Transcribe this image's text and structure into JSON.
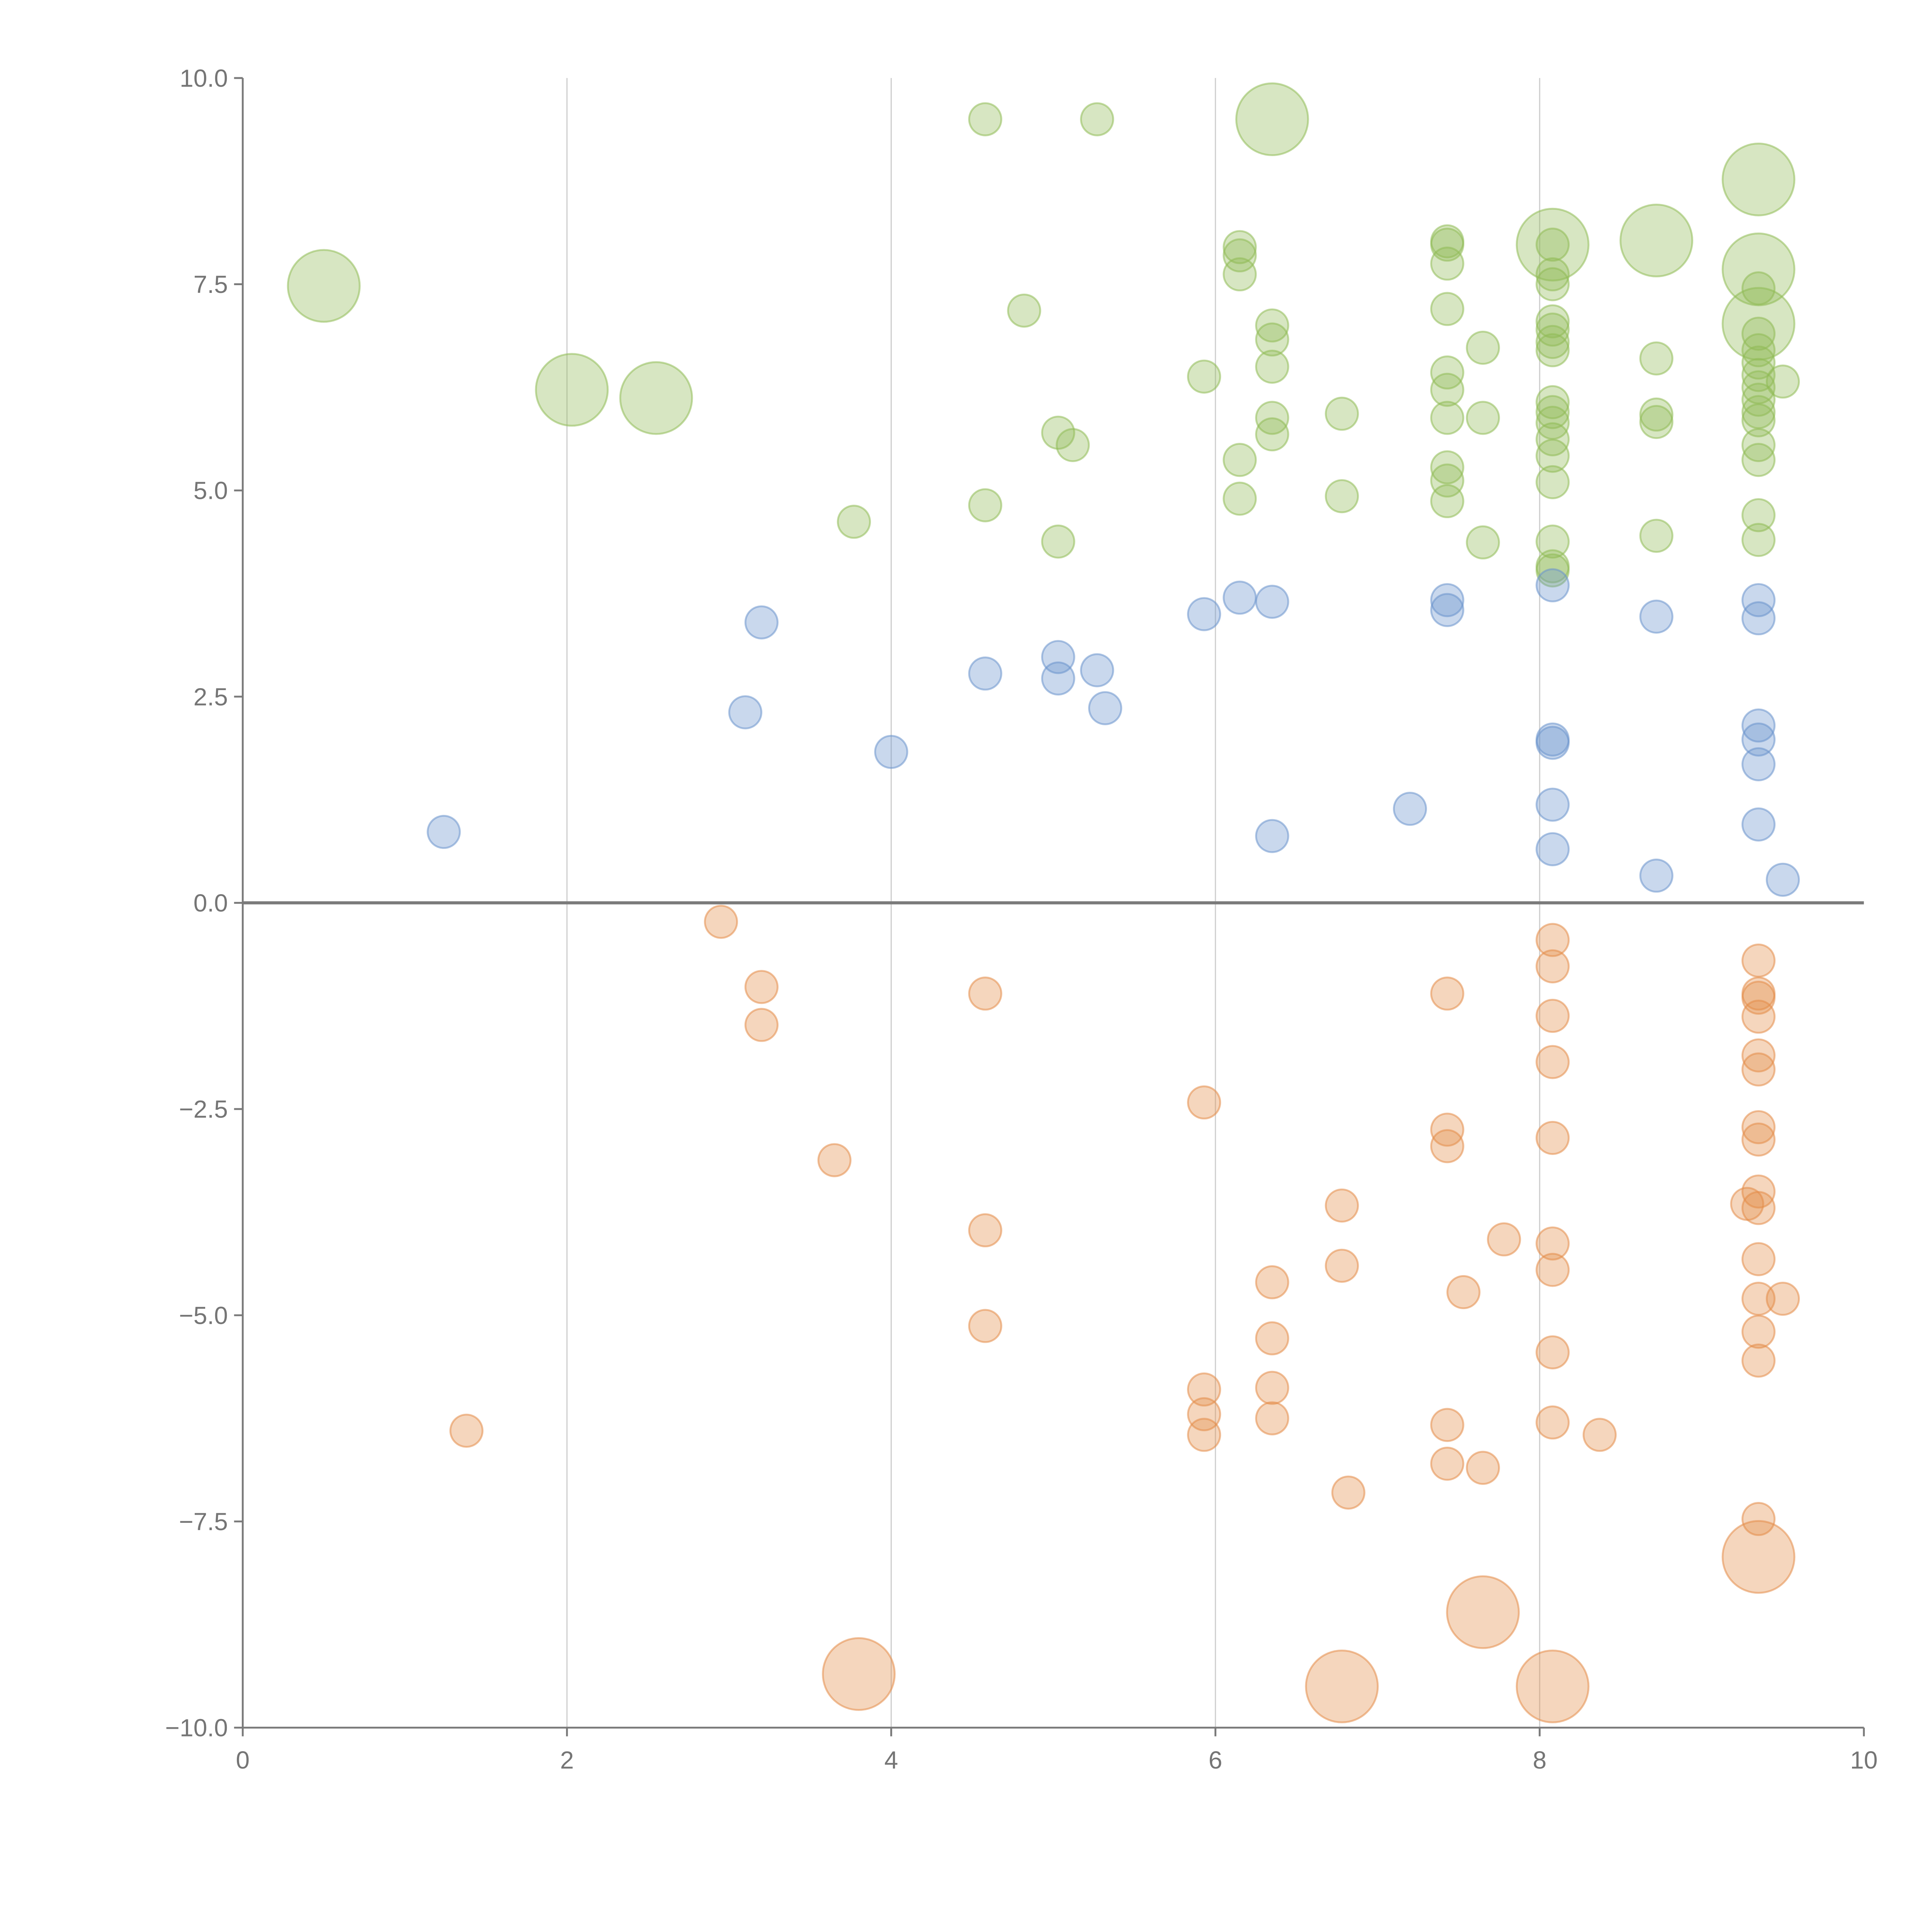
{
  "chart_data": {
    "type": "scatter",
    "title": "",
    "xlabel": "",
    "ylabel": "",
    "xlim": [
      0,
      10
    ],
    "ylim": [
      -10,
      10
    ],
    "grid": "vertical lines at x ticks",
    "x_ticks": [
      "0",
      "2",
      "4",
      "6",
      "8",
      "10"
    ],
    "y_ticks": [
      "10.0",
      "7.5",
      "5.0",
      "2.5",
      "0.0",
      "−2.5",
      "−5.0",
      "−7.5",
      "−10.0"
    ],
    "colors": {
      "green": "#8fbb55",
      "blue": "#6a93cc",
      "orange": "#e38d48",
      "axis": "#7a7a7a"
    },
    "series": [
      {
        "name": "green",
        "color": "#8fbb55",
        "large": [
          [
            0.5,
            7.48
          ],
          [
            2.03,
            6.22
          ],
          [
            2.55,
            6.12
          ],
          [
            6.35,
            9.5
          ],
          [
            8.08,
            7.98
          ],
          [
            8.72,
            8.03
          ],
          [
            9.35,
            8.77
          ],
          [
            9.35,
            7.68
          ],
          [
            9.35,
            7.02
          ]
        ],
        "points": [
          [
            4.58,
            9.5
          ],
          [
            5.27,
            9.5
          ],
          [
            4.82,
            7.18
          ],
          [
            3.77,
            4.62
          ],
          [
            4.58,
            4.82
          ],
          [
            5.03,
            5.7
          ],
          [
            5.12,
            5.55
          ],
          [
            5.03,
            4.38
          ],
          [
            5.93,
            6.38
          ],
          [
            6.15,
            7.95
          ],
          [
            6.15,
            7.85
          ],
          [
            6.15,
            7.62
          ],
          [
            6.15,
            5.37
          ],
          [
            6.15,
            4.9
          ],
          [
            6.35,
            7.0
          ],
          [
            6.35,
            6.83
          ],
          [
            6.35,
            6.5
          ],
          [
            6.35,
            5.88
          ],
          [
            6.35,
            5.68
          ],
          [
            6.78,
            5.93
          ],
          [
            6.78,
            4.93
          ],
          [
            7.43,
            8.02
          ],
          [
            7.43,
            7.98
          ],
          [
            7.43,
            7.75
          ],
          [
            7.43,
            7.2
          ],
          [
            7.43,
            6.43
          ],
          [
            7.43,
            6.22
          ],
          [
            7.43,
            5.88
          ],
          [
            7.43,
            5.28
          ],
          [
            7.43,
            5.12
          ],
          [
            7.43,
            4.87
          ],
          [
            7.65,
            6.73
          ],
          [
            7.65,
            5.88
          ],
          [
            7.65,
            4.37
          ],
          [
            8.08,
            7.98
          ],
          [
            8.08,
            7.62
          ],
          [
            8.08,
            7.5
          ],
          [
            8.08,
            7.05
          ],
          [
            8.08,
            6.95
          ],
          [
            8.08,
            6.8
          ],
          [
            8.08,
            6.7
          ],
          [
            8.08,
            6.07
          ],
          [
            8.08,
            5.95
          ],
          [
            8.08,
            5.82
          ],
          [
            8.08,
            5.62
          ],
          [
            8.08,
            5.42
          ],
          [
            8.08,
            5.1
          ],
          [
            8.08,
            4.38
          ],
          [
            8.08,
            4.08
          ],
          [
            8.08,
            4.03
          ],
          [
            8.72,
            6.6
          ],
          [
            8.72,
            5.92
          ],
          [
            8.72,
            5.83
          ],
          [
            8.72,
            4.45
          ],
          [
            9.35,
            7.45
          ],
          [
            9.35,
            6.9
          ],
          [
            9.35,
            6.7
          ],
          [
            9.35,
            6.55
          ],
          [
            9.35,
            6.4
          ],
          [
            9.35,
            6.25
          ],
          [
            9.35,
            6.1
          ],
          [
            9.35,
            5.95
          ],
          [
            9.35,
            5.85
          ],
          [
            9.35,
            5.55
          ],
          [
            9.35,
            5.37
          ],
          [
            9.35,
            4.7
          ],
          [
            9.35,
            4.4
          ],
          [
            9.5,
            6.32
          ]
        ]
      },
      {
        "name": "blue",
        "color": "#6a93cc",
        "large": [],
        "points": [
          [
            1.24,
            0.86
          ],
          [
            3.1,
            2.31
          ],
          [
            3.2,
            3.4
          ],
          [
            4.0,
            1.83
          ],
          [
            4.58,
            2.78
          ],
          [
            5.03,
            2.98
          ],
          [
            5.03,
            2.72
          ],
          [
            5.27,
            2.82
          ],
          [
            5.32,
            2.36
          ],
          [
            5.93,
            3.5
          ],
          [
            6.15,
            3.7
          ],
          [
            6.35,
            3.65
          ],
          [
            6.35,
            0.81
          ],
          [
            7.2,
            1.14
          ],
          [
            7.43,
            3.67
          ],
          [
            7.43,
            3.55
          ],
          [
            8.08,
            3.85
          ],
          [
            8.08,
            1.98
          ],
          [
            8.08,
            1.94
          ],
          [
            8.08,
            1.19
          ],
          [
            8.08,
            0.65
          ],
          [
            8.72,
            3.47
          ],
          [
            8.72,
            0.33
          ],
          [
            9.35,
            3.67
          ],
          [
            9.35,
            3.45
          ],
          [
            9.35,
            2.15
          ],
          [
            9.35,
            1.98
          ],
          [
            9.35,
            1.68
          ],
          [
            9.35,
            0.95
          ],
          [
            9.5,
            0.28
          ]
        ]
      },
      {
        "name": "orange",
        "color": "#e38d48",
        "large": [
          [
            3.8,
            -9.35
          ],
          [
            6.78,
            -9.5
          ],
          [
            7.65,
            -8.6
          ],
          [
            8.08,
            -9.5
          ],
          [
            9.35,
            -7.93
          ]
        ],
        "points": [
          [
            2.95,
            -0.23
          ],
          [
            3.2,
            -1.02
          ],
          [
            3.2,
            -1.48
          ],
          [
            1.38,
            -6.4
          ],
          [
            3.65,
            -3.12
          ],
          [
            4.58,
            -1.1
          ],
          [
            4.58,
            -3.97
          ],
          [
            4.58,
            -5.13
          ],
          [
            5.93,
            -2.42
          ],
          [
            5.93,
            -5.9
          ],
          [
            5.93,
            -6.2
          ],
          [
            5.93,
            -6.45
          ],
          [
            6.35,
            -4.6
          ],
          [
            6.35,
            -5.28
          ],
          [
            6.35,
            -5.88
          ],
          [
            6.35,
            -6.25
          ],
          [
            6.78,
            -3.67
          ],
          [
            6.78,
            -4.4
          ],
          [
            6.82,
            -7.15
          ],
          [
            7.43,
            -1.1
          ],
          [
            7.43,
            -2.75
          ],
          [
            7.43,
            -2.95
          ],
          [
            7.43,
            -6.33
          ],
          [
            7.43,
            -6.8
          ],
          [
            7.53,
            -4.72
          ],
          [
            7.65,
            -6.85
          ],
          [
            7.78,
            -4.08
          ],
          [
            8.08,
            -0.45
          ],
          [
            8.08,
            -0.77
          ],
          [
            8.08,
            -1.37
          ],
          [
            8.08,
            -1.93
          ],
          [
            8.08,
            -2.85
          ],
          [
            8.08,
            -4.13
          ],
          [
            8.08,
            -4.45
          ],
          [
            8.08,
            -5.45
          ],
          [
            8.08,
            -6.3
          ],
          [
            8.37,
            -6.45
          ],
          [
            9.35,
            -0.7
          ],
          [
            9.35,
            -1.1
          ],
          [
            9.35,
            -1.15
          ],
          [
            9.35,
            -1.38
          ],
          [
            9.35,
            -1.85
          ],
          [
            9.35,
            -2.02
          ],
          [
            9.35,
            -2.72
          ],
          [
            9.35,
            -2.87
          ],
          [
            9.35,
            -3.5
          ],
          [
            9.28,
            -3.65
          ],
          [
            9.35,
            -3.7
          ],
          [
            9.35,
            -4.32
          ],
          [
            9.35,
            -4.8
          ],
          [
            9.5,
            -4.8
          ],
          [
            9.35,
            -5.2
          ],
          [
            9.35,
            -5.55
          ],
          [
            9.35,
            -7.47
          ]
        ]
      }
    ]
  }
}
